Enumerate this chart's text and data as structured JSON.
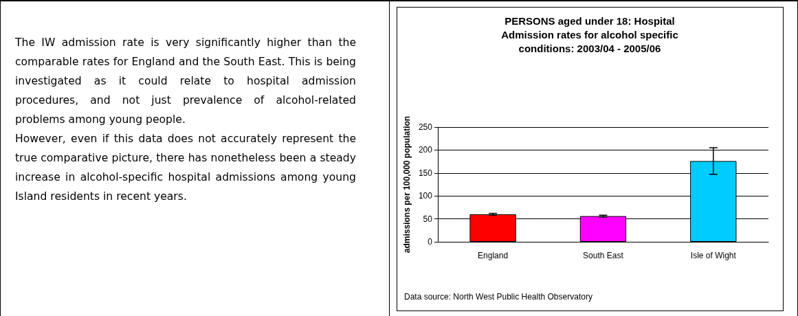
{
  "chart_data": [
    {
      "type": "other",
      "annotations": [
        "The IW admission rate is very significantly higher than the comparable rates for England and the South East.  This is being investigated as it could relate to hospital admission procedures, and not just prevalence of alcohol-related problems among young people.",
        "However, even if this data does not accurately represent the true comparative picture, there has nonetheless been a steady increase in alcohol-specific hospital admissions among young Island residents in recent years."
      ]
    },
    {
      "type": "bar",
      "title": "PERSONS aged under 18: Hospital Admission rates for alcohol specific conditions: 2003/04 - 2005/06",
      "ylabel": "admissions per 100,000 population",
      "categories": [
        "England",
        "South East",
        "Isle of Wight"
      ],
      "values": [
        60,
        56,
        176
      ],
      "colors": [
        "#ff0000",
        "#ff00ff",
        "#00ccff"
      ],
      "errors": [
        2,
        2,
        [
          147,
          205
        ]
      ],
      "ylim": [
        0,
        250
      ],
      "yticks": [
        0,
        50,
        100,
        150,
        200,
        250
      ],
      "grid": "y",
      "annotations": [
        "Data source: North West Public Health Observatory"
      ]
    }
  ]
}
